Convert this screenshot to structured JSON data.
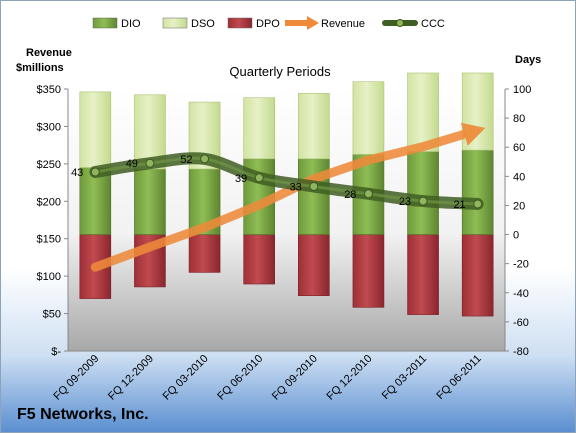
{
  "chart_data": {
    "type": "bar",
    "title": "F5 Networks, Inc.",
    "subtitle": "Quarterly Periods",
    "categories": [
      "FQ 09-2009",
      "FQ 12-2009",
      "FQ 03-2010",
      "FQ 06-2010",
      "FQ 09-2010",
      "FQ 12-2010",
      "FQ 03-2011",
      "FQ 06-2011"
    ],
    "left_axis": {
      "label_line1": "Revenue",
      "label_line2": "$millions",
      "ylim": [
        0,
        350
      ],
      "ticks": [
        0,
        50,
        100,
        150,
        200,
        250,
        300,
        350
      ],
      "tick_labels": [
        "$-",
        "$50",
        "$100",
        "$150",
        "$200",
        "$250",
        "$300",
        "$350"
      ]
    },
    "right_axis": {
      "label": "Days",
      "ylim": [
        -80,
        100
      ],
      "ticks": [
        -80,
        -60,
        -40,
        -20,
        0,
        20,
        40,
        60,
        80,
        100
      ],
      "tick_labels": [
        "-80",
        "-60",
        "-40",
        "-20",
        "0",
        "20",
        "40",
        "60",
        "80",
        "100"
      ]
    },
    "series": [
      {
        "name": "DIO",
        "axis": "days",
        "kind": "stacked-bar",
        "color": "#6e9b3a",
        "values": [
          46,
          45,
          45,
          52,
          52,
          55,
          57,
          58
        ]
      },
      {
        "name": "DSO",
        "axis": "days",
        "kind": "stacked-bar",
        "color": "#d4e6a8",
        "values": [
          52,
          51,
          46,
          42,
          45,
          50,
          54,
          53
        ]
      },
      {
        "name": "DPO",
        "axis": "days",
        "kind": "negative-bar",
        "color": "#a8323a",
        "values": [
          -44,
          -36,
          -26,
          -34,
          -42,
          -50,
          -55,
          -56
        ]
      },
      {
        "name": "Revenue",
        "axis": "revenue",
        "kind": "arrow-line",
        "color": "#ee8a3a",
        "values": [
          112,
          139,
          165,
          195,
          230,
          255,
          273,
          295
        ]
      },
      {
        "name": "CCC",
        "axis": "days",
        "kind": "line",
        "color": "#4a6a2a",
        "values": [
          43,
          49,
          52,
          39,
          33,
          28,
          23,
          21
        ],
        "labels": [
          "43",
          "49",
          "52",
          "39",
          "33",
          "28",
          "23",
          "21"
        ]
      }
    ],
    "legend_position": "top",
    "grid": false
  }
}
